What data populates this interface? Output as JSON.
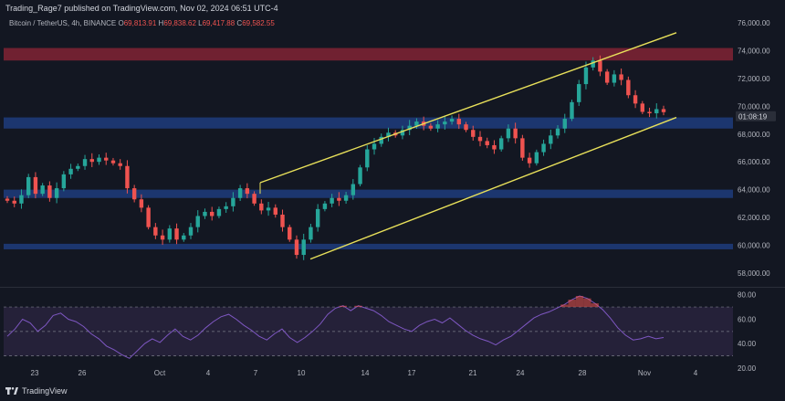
{
  "publisher": {
    "text": "Trading_Rage7 published on TradingView.com, Nov 02, 2024 06:51 UTC-4"
  },
  "legend": {
    "symbol": "Bitcoin / TetherUS, 4h, BINANCE",
    "o_label": "O",
    "o_value": "69,813.91",
    "h_label": "H",
    "h_value": "69,838.62",
    "l_label": "L",
    "l_value": "69,417.88",
    "c_label": "C",
    "c_value": "69,582.55"
  },
  "brand": {
    "text": "TradingView"
  },
  "colors": {
    "background": "#131722",
    "up": "#26a69a",
    "down": "#ef5350",
    "resistance_zone": "#7b2233",
    "support_zone": "#1e3a78",
    "channel": "#e8e05a",
    "rsi_line": "#7e57c2",
    "rsi_band": "#2a2440"
  },
  "chart_data": [
    {
      "type": "candlestick",
      "title": "",
      "ylim": [
        57000,
        77000
      ],
      "y_ticks": [
        "76,000.00",
        "74,000.00",
        "72,000.00",
        "70,000.00",
        "68,000.00",
        "66,000.00",
        "64,000.00",
        "62,000.00",
        "60,000.00",
        "58,000.00"
      ],
      "y_tick_values": [
        76000,
        74000,
        72000,
        70000,
        68000,
        66000,
        64000,
        62000,
        60000,
        58000
      ],
      "x_ticks": [
        "23",
        "26",
        "Oct",
        "4",
        "7",
        "10",
        "14",
        "17",
        "21",
        "24",
        "28",
        "Nov",
        "4"
      ],
      "price_label": "01:08:19",
      "zones": [
        {
          "name": "resistance",
          "from": 73300,
          "to": 74200
        },
        {
          "name": "support-upper",
          "from": 68400,
          "to": 69200
        },
        {
          "name": "support-mid",
          "from": 63400,
          "to": 64000
        },
        {
          "name": "support-low",
          "from": 59700,
          "to": 60100
        }
      ],
      "channel": {
        "upper": [
          {
            "x": "Oct 7",
            "y": 64500
          },
          {
            "x": "Nov 3",
            "y": 75300
          }
        ],
        "lower": [
          {
            "x": "Oct 10",
            "y": 59000
          },
          {
            "x": "Nov 3",
            "y": 69200
          }
        ]
      },
      "close_path": [
        63200,
        63000,
        63600,
        64900,
        63700,
        64300,
        63400,
        64100,
        65100,
        65500,
        65700,
        66200,
        66000,
        66300,
        66100,
        65900,
        65700,
        64100,
        63300,
        62700,
        61300,
        60700,
        60400,
        61200,
        60400,
        60700,
        61300,
        62100,
        62400,
        62100,
        62600,
        62800,
        63400,
        64100,
        63700,
        63000,
        62500,
        62700,
        62200,
        61300,
        60400,
        59300,
        60400,
        61300,
        62600,
        63000,
        63400,
        63200,
        63600,
        64400,
        65600,
        66900,
        67300,
        67800,
        68100,
        67900,
        68300,
        68600,
        68900,
        68600,
        68400,
        68700,
        68900,
        69100,
        68700,
        68300,
        67800,
        67500,
        67200,
        66900,
        67700,
        68400,
        67700,
        66300,
        65900,
        66700,
        67300,
        67900,
        68400,
        69100,
        70300,
        71600,
        72800,
        73300,
        72500,
        71700,
        72300,
        71900,
        70800,
        70200,
        69600,
        69500,
        69800,
        69580
      ]
    },
    {
      "type": "line",
      "title": "",
      "ylim": [
        20,
        85
      ],
      "y_ticks": [
        "80.00",
        "60.00",
        "40.00",
        "20.00"
      ],
      "y_tick_values": [
        80,
        60,
        40,
        20
      ],
      "band": [
        30,
        70
      ],
      "values": [
        46,
        52,
        60,
        57,
        50,
        55,
        63,
        65,
        60,
        58,
        54,
        48,
        44,
        38,
        35,
        31,
        28,
        34,
        40,
        44,
        41,
        47,
        52,
        46,
        43,
        47,
        53,
        58,
        62,
        64,
        60,
        55,
        51,
        46,
        43,
        48,
        52,
        45,
        41,
        45,
        50,
        56,
        64,
        69,
        71,
        67,
        71,
        69,
        67,
        63,
        58,
        55,
        52,
        50,
        55,
        58,
        60,
        57,
        61,
        56,
        51,
        47,
        44,
        42,
        39,
        43,
        46,
        51,
        56,
        61,
        64,
        66,
        69,
        72,
        76,
        79,
        77,
        73,
        68,
        61,
        53,
        47,
        43,
        44,
        46,
        44,
        45
      ]
    }
  ]
}
